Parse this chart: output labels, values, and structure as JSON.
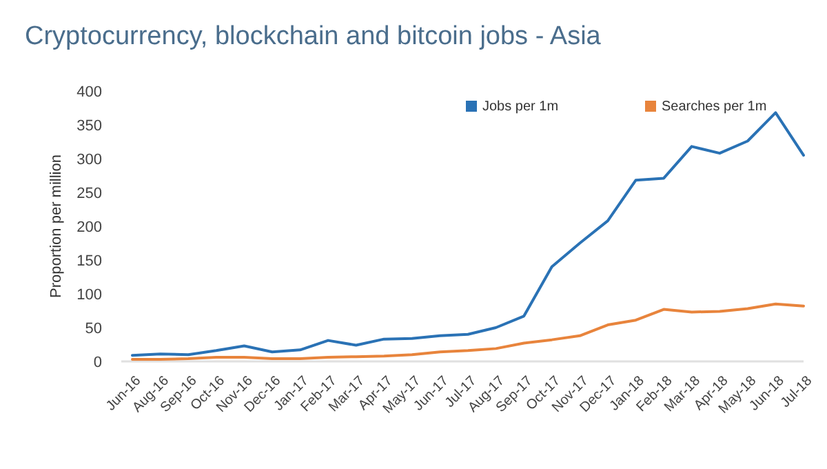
{
  "chart_data": {
    "type": "line",
    "title": "Cryptocurrency, blockchain and bitcoin jobs - Asia",
    "ylabel": "Proportion per million",
    "categories": [
      "Jun-16",
      "Aug-16",
      "Sep-16",
      "Oct-16",
      "Nov-16",
      "Dec-16",
      "Jan-17",
      "Feb-17",
      "Mar-17",
      "Apr-17",
      "May-17",
      "Jun-17",
      "Jul-17",
      "Aug-17",
      "Sep-17",
      "Oct-17",
      "Nov-17",
      "Dec-17",
      "Jan-18",
      "Feb-18",
      "Mar-18",
      "Apr-18",
      "May-18",
      "Jun-18",
      "Jul-18"
    ],
    "series": [
      {
        "name": "Jobs per 1m",
        "color": "#2a72b5",
        "values": [
          9,
          11,
          10,
          16,
          23,
          14,
          17,
          31,
          24,
          33,
          34,
          38,
          40,
          50,
          67,
          140,
          175,
          208,
          268,
          271,
          318,
          308,
          326,
          368,
          305
        ]
      },
      {
        "name": "Searches per 1m",
        "color": "#e8843c",
        "values": [
          3,
          3,
          4,
          6,
          6,
          4,
          4,
          6,
          7,
          8,
          10,
          14,
          16,
          19,
          27,
          32,
          38,
          54,
          61,
          77,
          73,
          74,
          78,
          85,
          82
        ]
      }
    ],
    "ylim": [
      0,
      400
    ],
    "yticks": [
      0,
      50,
      100,
      150,
      200,
      250,
      300,
      350,
      400
    ],
    "legend": "top right",
    "marker": "none",
    "line_style": "solid"
  }
}
